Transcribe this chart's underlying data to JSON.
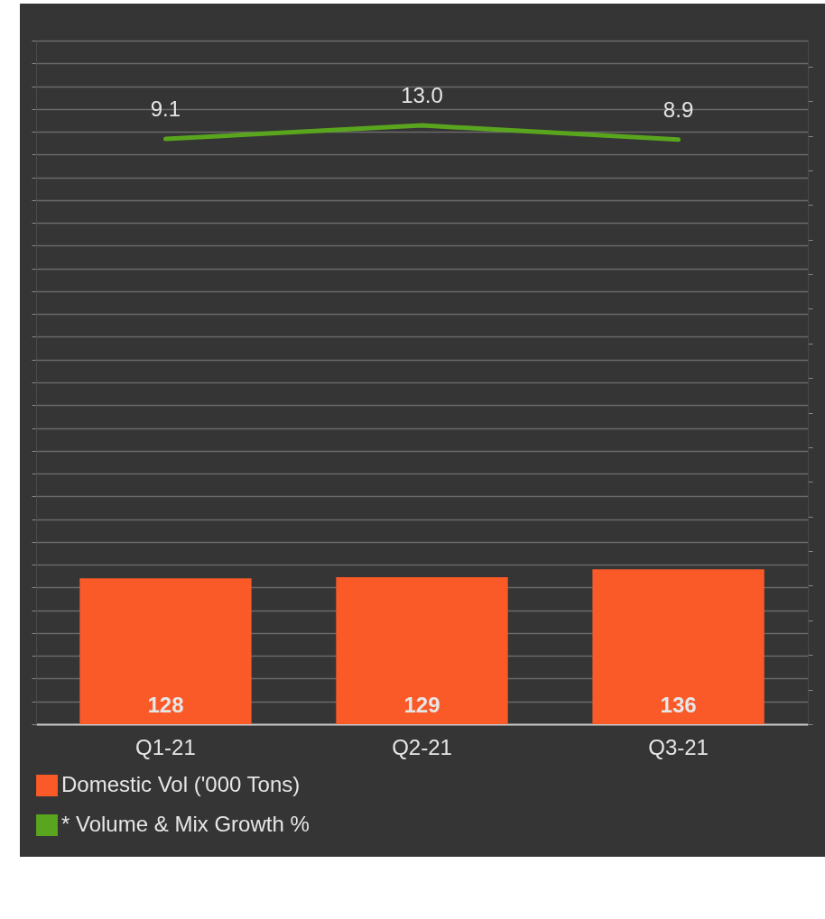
{
  "chart_data": {
    "type": "bar",
    "categories": [
      "Q1-21",
      "Q2-21",
      "Q3-21"
    ],
    "series": [
      {
        "name": "Domestic Vol ('000 Tons)",
        "color": "#fa5a28",
        "values": [
          128,
          129,
          136
        ]
      },
      {
        "name": "* Volume & Mix Growth %",
        "type": "line",
        "axis": "y2",
        "color": "#5aa51e",
        "values": [
          9.1,
          13.0,
          8.9
        ],
        "value_labels": [
          "9.1",
          "13.0",
          "8.9"
        ]
      }
    ],
    "ylim": [
      0,
      600
    ],
    "y2lim": [
      -160,
      37.5
    ],
    "grid": true,
    "tick_labels": "x",
    "data_labels": true,
    "legend": "bottom",
    "line_style": "solid"
  }
}
